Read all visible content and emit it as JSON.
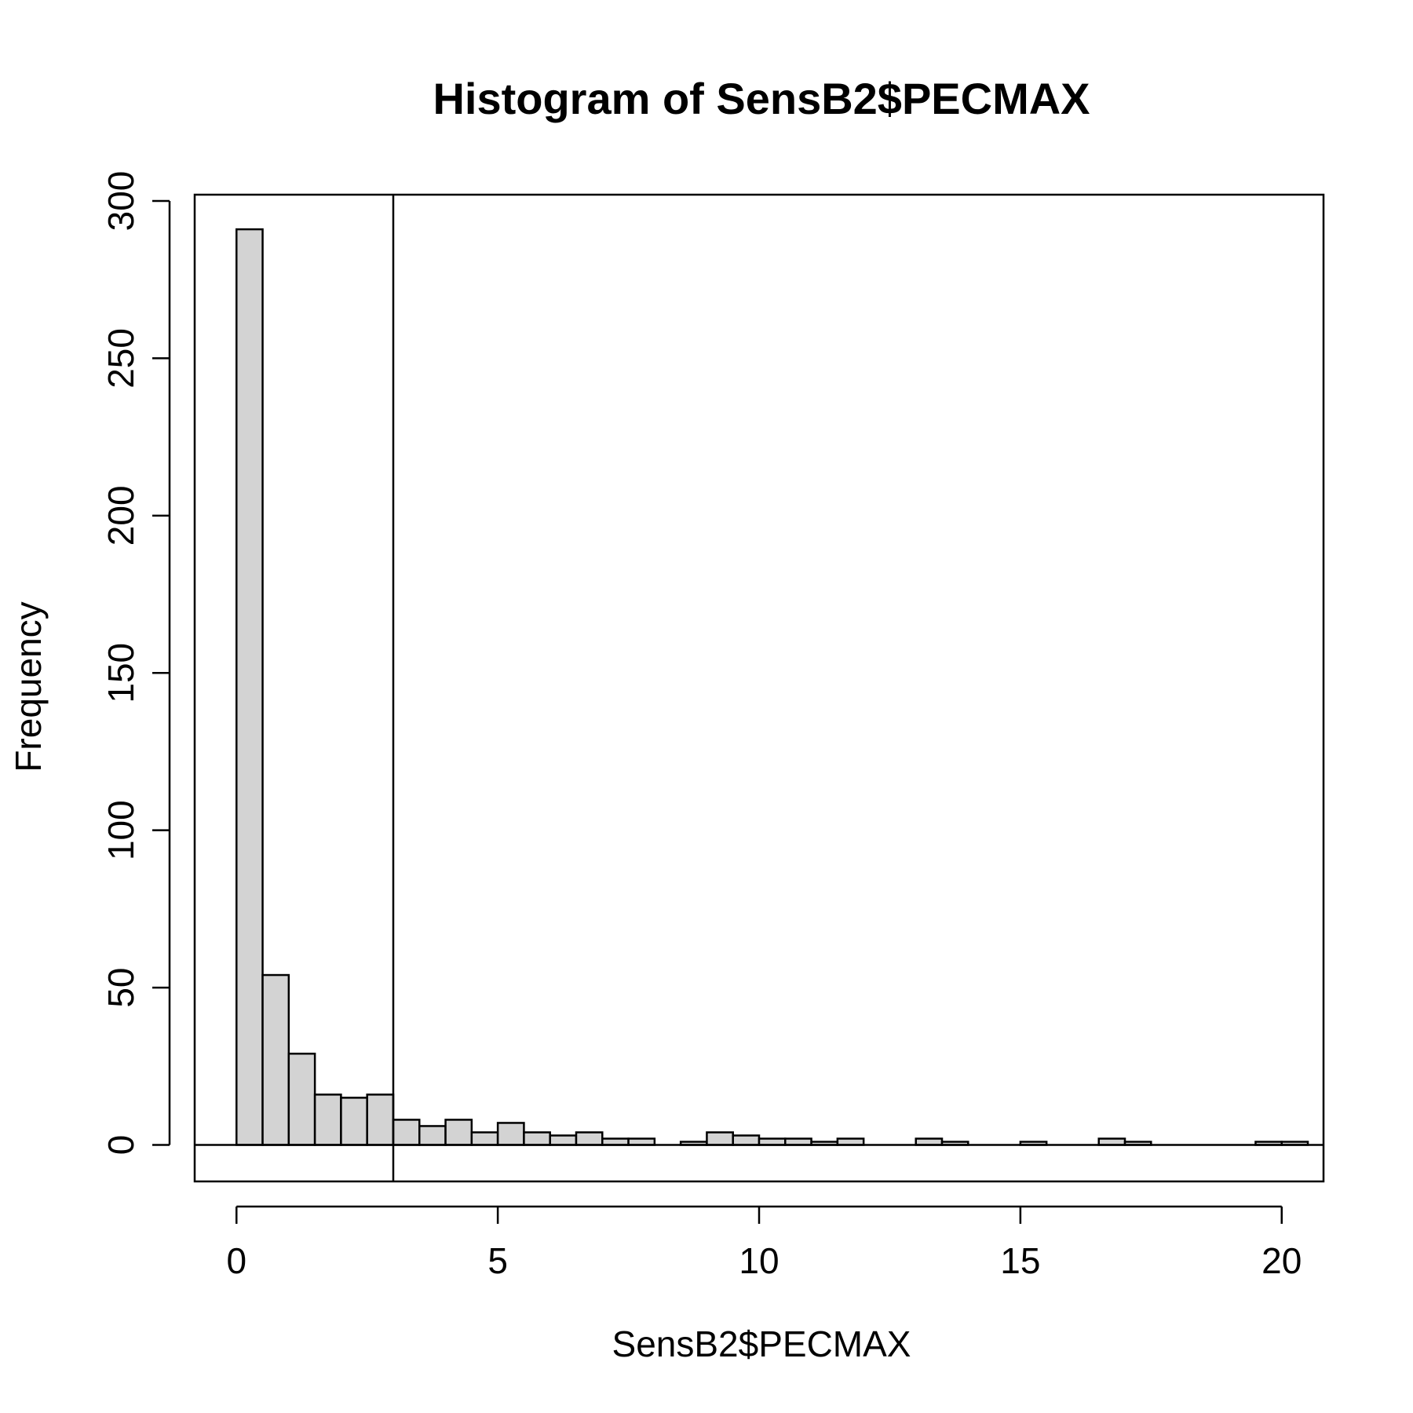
{
  "chart_data": {
    "type": "bar",
    "title": "Histogram of SensB2$PECMAX",
    "xlabel": "SensB2$PECMAX",
    "ylabel": "Frequency",
    "bin_width": 0.5,
    "bin_starts": [
      0,
      0.5,
      1,
      1.5,
      2,
      2.5,
      3,
      3.5,
      4,
      4.5,
      5,
      5.5,
      6,
      6.5,
      7,
      7.5,
      8,
      8.5,
      9,
      9.5,
      10,
      10.5,
      11,
      11.5,
      12,
      12.5,
      13,
      13.5,
      14,
      14.5,
      15,
      15.5,
      16,
      16.5,
      17,
      17.5,
      18,
      18.5,
      19,
      19.5,
      20
    ],
    "values": [
      291,
      54,
      29,
      16,
      15,
      16,
      8,
      6,
      8,
      4,
      7,
      4,
      3,
      4,
      2,
      2,
      0,
      1,
      4,
      3,
      2,
      2,
      1,
      2,
      0,
      0,
      2,
      1,
      0,
      0,
      1,
      0,
      0,
      2,
      1,
      0,
      0,
      0,
      0,
      1,
      1
    ],
    "xlim": [
      -0.8,
      20.8
    ],
    "ylim": [
      -11.6,
      302
    ],
    "x_ticks": [
      0,
      5,
      10,
      15,
      20
    ],
    "y_ticks": [
      0,
      50,
      100,
      150,
      200,
      250,
      300
    ],
    "vline": 3,
    "grid": false
  }
}
